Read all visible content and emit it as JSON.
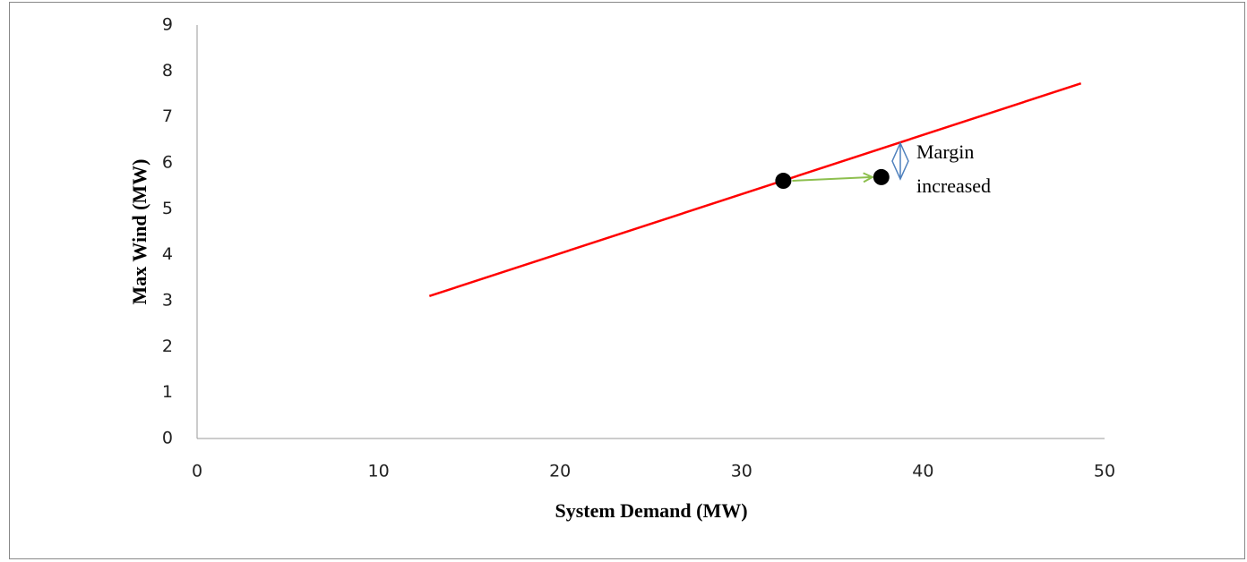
{
  "chart_data": {
    "type": "line",
    "x_label": "System Demand (MW)",
    "y_label": "Max Wind  (MW)",
    "xlim": [
      0,
      50
    ],
    "xticks": [
      0,
      10,
      20,
      30,
      40,
      50
    ],
    "ylim": [
      0,
      9
    ],
    "yticks": [
      0,
      1,
      2,
      3,
      4,
      5,
      6,
      7,
      8,
      9
    ],
    "grid": false,
    "series": [
      {
        "type": "line",
        "color": "#ff0000",
        "x": [
          12.8,
          48.7
        ],
        "values": [
          3.1,
          7.73
        ]
      },
      {
        "type": "scatter",
        "color": "#000000",
        "x": [
          32.3,
          37.7
        ],
        "values": [
          5.61,
          5.69
        ]
      }
    ],
    "annotation": [
      "Margin",
      "increased"
    ]
  }
}
